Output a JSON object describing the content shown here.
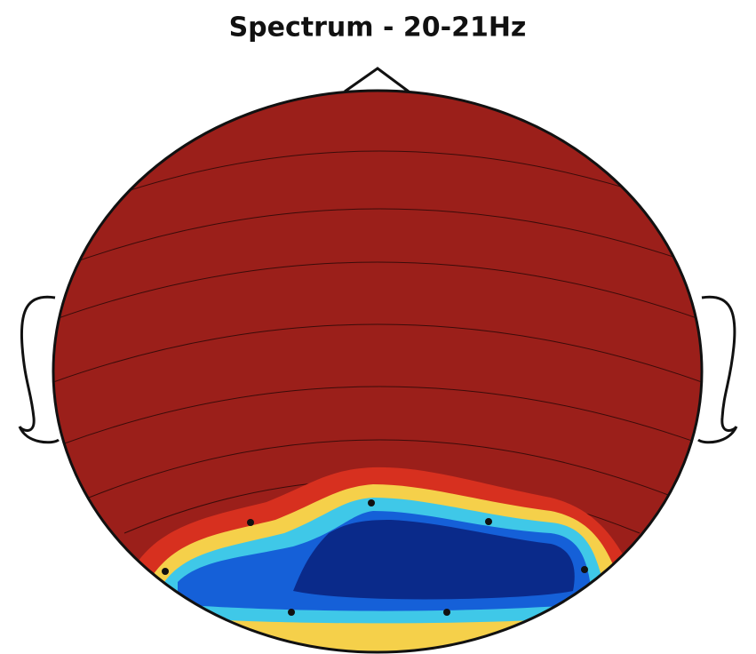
{
  "title": "Spectrum - 20-21Hz"
}
